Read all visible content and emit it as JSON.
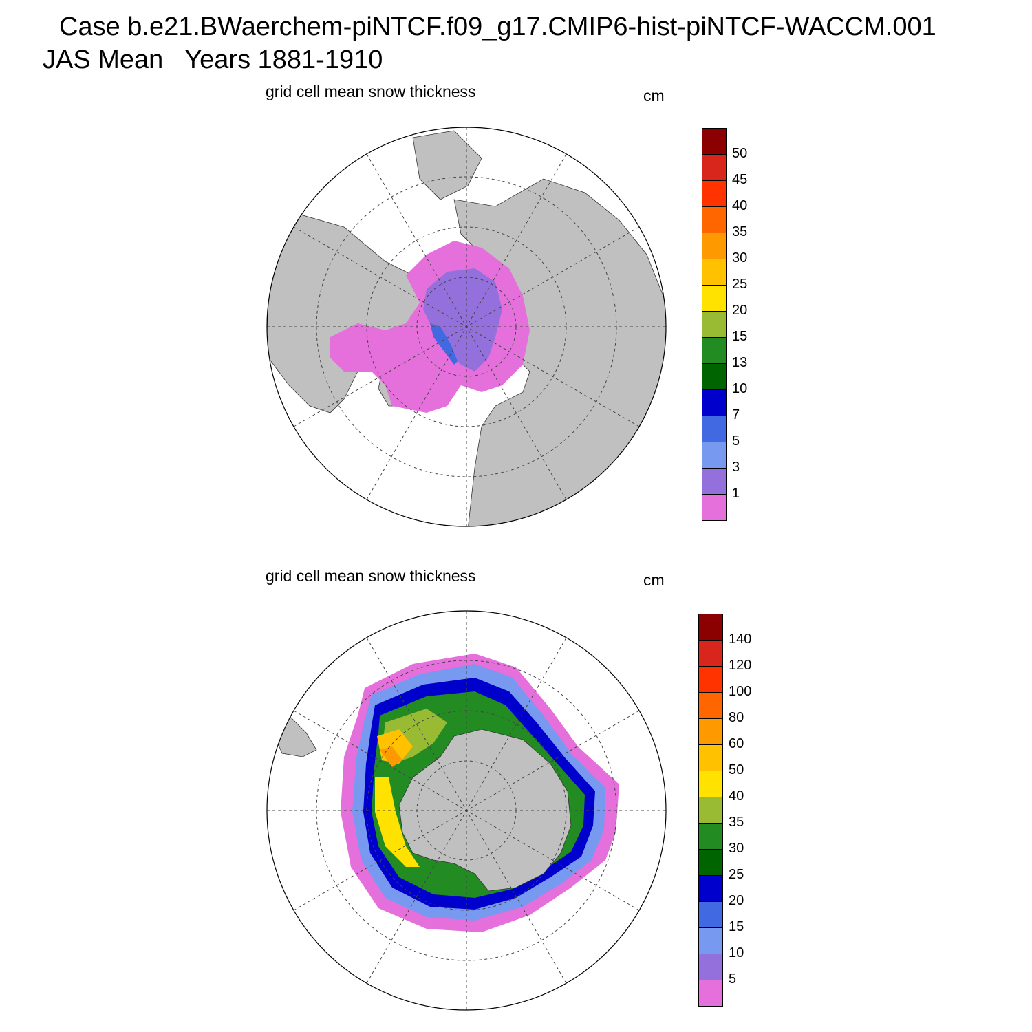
{
  "figure": {
    "title": "Case b.e21.BWaerchem-piNTCF.f09_g17.CMIP6-hist-piNTCF-WACCM.001",
    "subtitle": "JAS Mean   Years 1881-1910"
  },
  "panels": [
    {
      "hemisphere": "north",
      "title": "grid cell mean snow thickness",
      "units": "cm",
      "colorbar": {
        "labels": [
          "50",
          "45",
          "40",
          "35",
          "30",
          "25",
          "20",
          "15",
          "13",
          "10",
          "7",
          "5",
          "3",
          "1"
        ],
        "colors": [
          "#8B0000",
          "#D9261C",
          "#FF3300",
          "#FF6600",
          "#FF9900",
          "#FFC100",
          "#FFE200",
          "#99BB33",
          "#228B22",
          "#006400",
          "#0000CD",
          "#4169E1",
          "#7799F0",
          "#9370DB",
          "#E56FDB"
        ]
      }
    },
    {
      "hemisphere": "south",
      "title": "grid cell mean snow thickness",
      "units": "cm",
      "colorbar": {
        "labels": [
          "140",
          "120",
          "100",
          "80",
          "60",
          "50",
          "40",
          "35",
          "30",
          "25",
          "20",
          "15",
          "10",
          "5"
        ],
        "colors": [
          "#8B0000",
          "#D9261C",
          "#FF3300",
          "#FF6600",
          "#FF9900",
          "#FFC100",
          "#FFE200",
          "#99BB33",
          "#228B22",
          "#006400",
          "#0000CD",
          "#4169E1",
          "#7799F0",
          "#9370DB",
          "#E56FDB"
        ]
      }
    }
  ],
  "colors": {
    "land": "#C0C0C0",
    "ocean": "#FFFFFF",
    "grid": "#444444"
  }
}
